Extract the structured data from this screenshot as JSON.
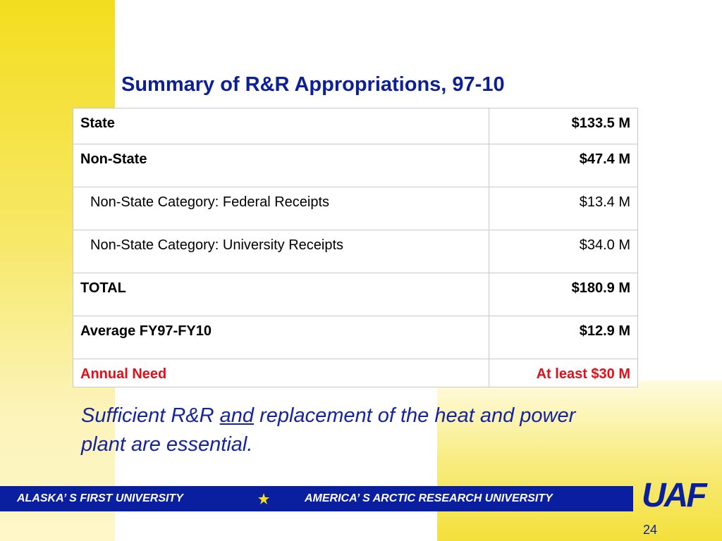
{
  "title": "Summary of R&R Appropriations, 97-10",
  "table": {
    "rows": [
      [
        "State",
        "$133.5 M"
      ],
      [
        "Non-State",
        "$47.4 M"
      ],
      [
        "Non-State Category: Federal Receipts",
        "$13.4 M"
      ],
      [
        "Non-State Category: University Receipts",
        "$34.0 M"
      ],
      [
        "TOTAL",
        "$180.9 M"
      ],
      [
        "Average FY97-FY10",
        "$12.9 M"
      ],
      [
        "Annual Need",
        "At least $30 M"
      ]
    ]
  },
  "note": {
    "parts": [
      "Sufficient R&R ",
      "and",
      " replacement of the heat and power plant are essential."
    ]
  },
  "footer": {
    "left": "ALASKA’ S FIRST UNIVERSITY",
    "right": "AMERICA’ S ARCTIC RESEARCH UNIVERSITY",
    "logo": "UAF",
    "page": "24"
  }
}
